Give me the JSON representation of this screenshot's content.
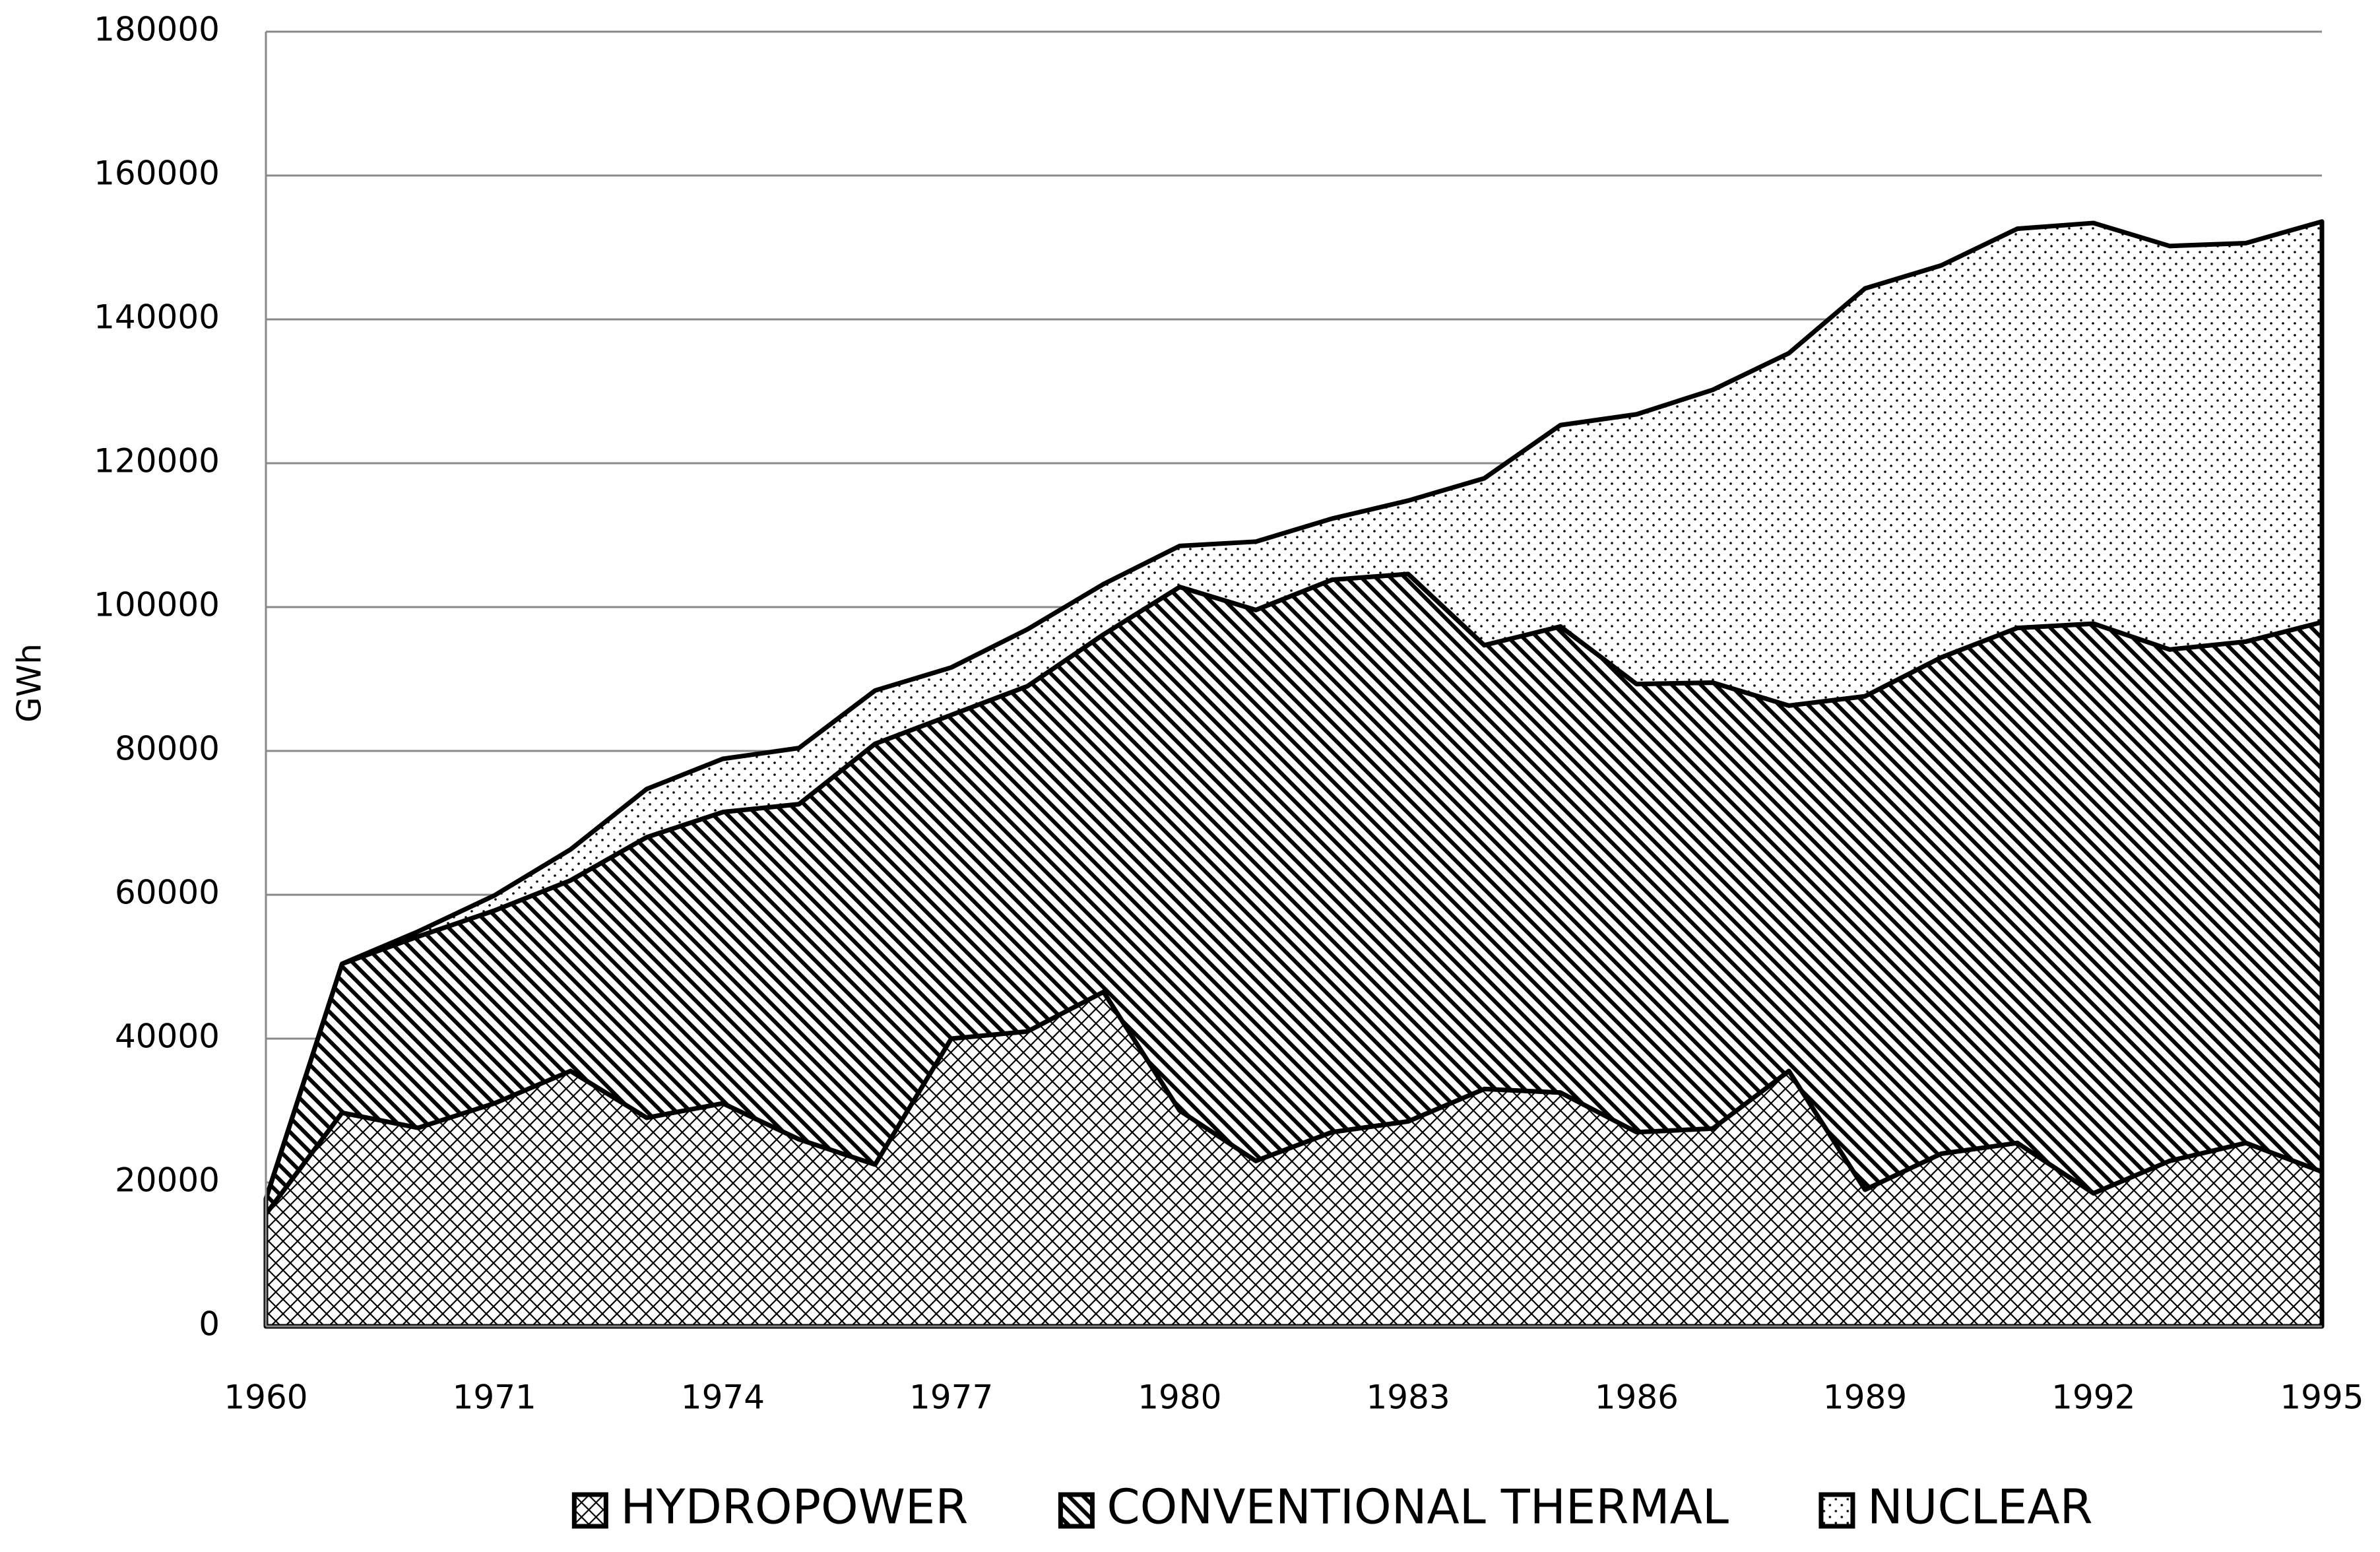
{
  "chart_data": {
    "type": "stacked_area",
    "y_label": "GWh",
    "categories": [
      "1960",
      null,
      null,
      "1971",
      null,
      null,
      "1974",
      null,
      null,
      "1977",
      null,
      null,
      "1980",
      null,
      null,
      "1983",
      null,
      null,
      "1986",
      null,
      null,
      "1989",
      null,
      null,
      "1992",
      null,
      null,
      "1995"
    ],
    "series": [
      {
        "name": "HYDROPOWER",
        "color": "#000000",
        "pattern": "crosshatch",
        "values": [
          15600,
          29700,
          27600,
          31000,
          35500,
          29000,
          31000,
          26000,
          22500,
          40000,
          41000,
          46500,
          30000,
          23000,
          27000,
          28500,
          33000,
          32500,
          27000,
          27500,
          35500,
          19000,
          24000,
          25500,
          18500,
          23000,
          25500,
          21500
        ]
      },
      {
        "name": "CONVENTIONAL THERMAL",
        "color": "#000000",
        "pattern": "stripes",
        "values": [
          2100,
          20700,
          26600,
          26800,
          26500,
          39000,
          40500,
          46600,
          58500,
          45000,
          48000,
          49700,
          72800,
          76600,
          76800,
          76100,
          61700,
          64800,
          62300,
          62000,
          50800,
          68600,
          69000,
          71600,
          79200,
          71100,
          69700,
          76400
        ]
      },
      {
        "name": "NUCLEAR",
        "color": "#000000",
        "pattern": "dots",
        "values": [
          0,
          0,
          700,
          2100,
          4300,
          6700,
          7400,
          7800,
          7400,
          6600,
          7900,
          7000,
          5700,
          9500,
          8500,
          10200,
          23200,
          28000,
          37500,
          40700,
          49000,
          56700,
          54500,
          55500,
          55700,
          56100,
          55400,
          55700
        ]
      }
    ],
    "ylim": [
      0,
      180000
    ],
    "yticks": [
      0,
      20000,
      40000,
      60000,
      80000,
      100000,
      120000,
      140000,
      160000,
      180000
    ],
    "grid": true,
    "legend": "bottom"
  }
}
